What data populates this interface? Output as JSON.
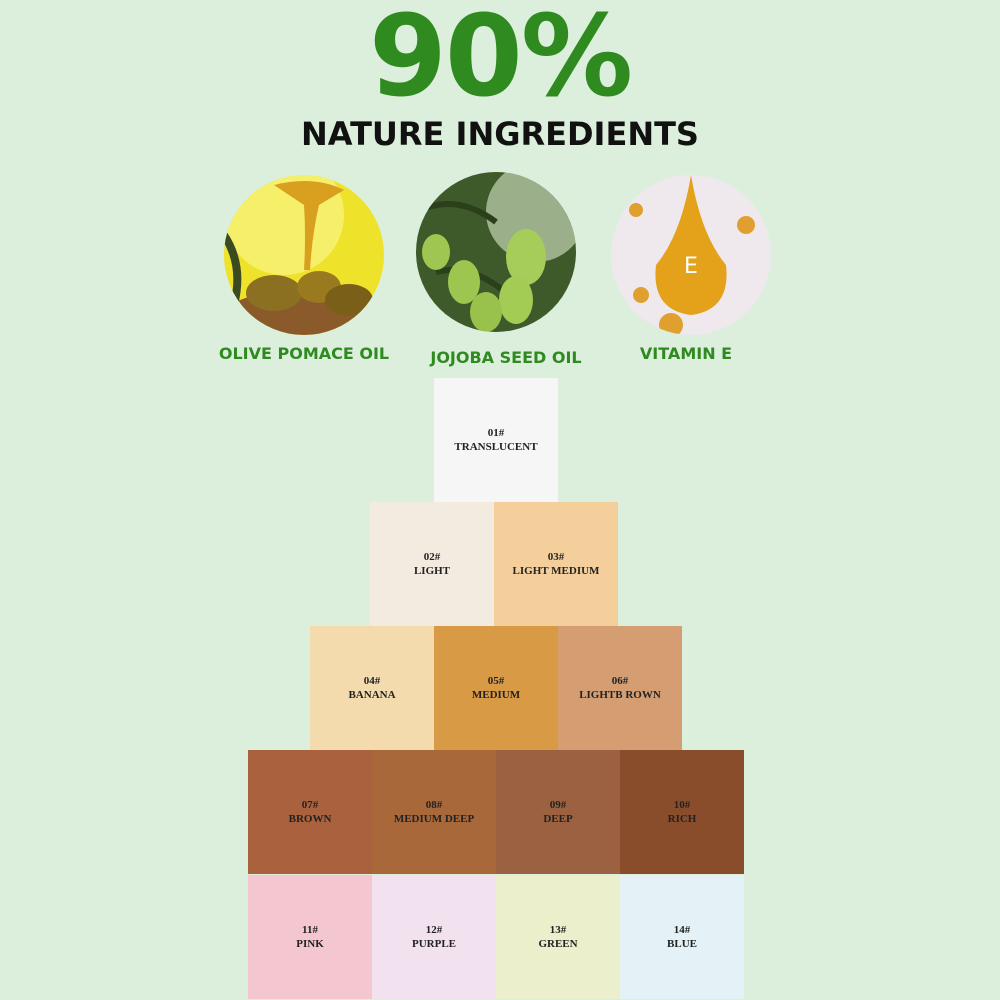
{
  "headline": {
    "percent": "90%",
    "subtitle": "NATURE INGREDIENTS",
    "accent": "#2f8a1f"
  },
  "ingredients": [
    {
      "label": "OLIVE POMACE OIL",
      "icon": "olive-oil-image"
    },
    {
      "label": "JOJOBA SEED OIL",
      "icon": "jojoba-image"
    },
    {
      "label": "VITAMIN E",
      "icon": "vitamin-e-drop-image",
      "drop_letter": "E"
    }
  ],
  "shades": [
    {
      "code": "01#",
      "name": "TRANSLUCENT",
      "color": "#f6f6f7"
    },
    {
      "code": "02#",
      "name": "LIGHT",
      "color": "#f3ebe0"
    },
    {
      "code": "03#",
      "name": "LIGHT MEDIUM",
      "color": "#f5cf9b"
    },
    {
      "code": "04#",
      "name": "BANANA",
      "color": "#f4dbae"
    },
    {
      "code": "05#",
      "name": "MEDIUM",
      "color": "#d99a45"
    },
    {
      "code": "06#",
      "name": "LIGHTB ROWN",
      "color": "#d59e72"
    },
    {
      "code": "07#",
      "name": "BROWN",
      "color": "#a9623d"
    },
    {
      "code": "08#",
      "name": "MEDIUM DEEP",
      "color": "#a8683a"
    },
    {
      "code": "09#",
      "name": "DEEP",
      "color": "#9c6140"
    },
    {
      "code": "10#",
      "name": "RICH",
      "color": "#8a4d2b"
    },
    {
      "code": "11#",
      "name": "PINK",
      "color": "#f4c6cf"
    },
    {
      "code": "12#",
      "name": "PURPLE",
      "color": "#f2e2ef"
    },
    {
      "code": "13#",
      "name": "GREEN",
      "color": "#ecefcc"
    },
    {
      "code": "14#",
      "name": "BLUE",
      "color": "#e4f1f6"
    }
  ]
}
